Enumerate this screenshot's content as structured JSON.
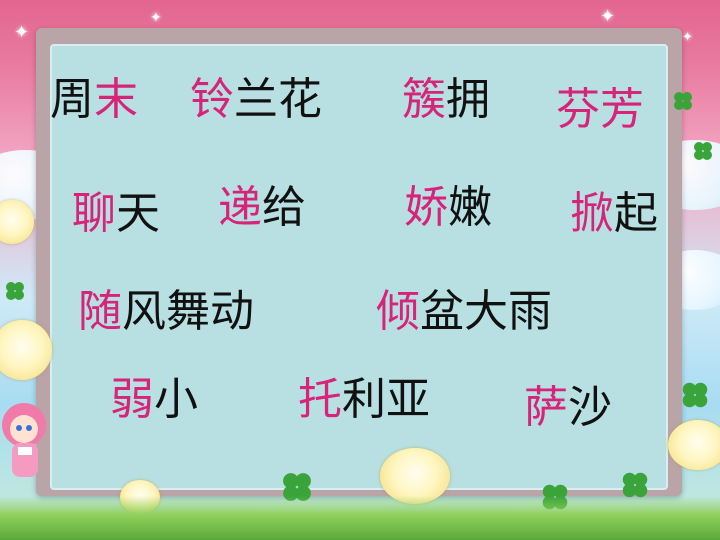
{
  "rows": [
    [
      {
        "parts": [
          {
            "text": "周",
            "color": "black"
          },
          {
            "text": "末",
            "color": "pink"
          }
        ]
      },
      {
        "parts": [
          {
            "text": "铃",
            "color": "pink"
          },
          {
            "text": "兰花",
            "color": "black"
          }
        ]
      },
      {
        "parts": [
          {
            "text": "簇",
            "color": "pink"
          },
          {
            "text": "拥",
            "color": "black"
          }
        ]
      },
      {
        "parts": [
          {
            "text": "芬芳",
            "color": "pink"
          }
        ]
      }
    ],
    [
      {
        "parts": [
          {
            "text": "聊",
            "color": "pink"
          },
          {
            "text": "天",
            "color": "black"
          }
        ]
      },
      {
        "parts": [
          {
            "text": "递",
            "color": "pink"
          },
          {
            "text": "给",
            "color": "black"
          }
        ]
      },
      {
        "parts": [
          {
            "text": "娇",
            "color": "pink"
          },
          {
            "text": "嫩",
            "color": "black"
          }
        ]
      },
      {
        "parts": [
          {
            "text": "掀",
            "color": "pink"
          },
          {
            "text": "起",
            "color": "black"
          }
        ]
      }
    ],
    [
      {
        "parts": [
          {
            "text": "随",
            "color": "pink"
          },
          {
            "text": "风舞动",
            "color": "black"
          }
        ]
      },
      {
        "parts": [
          {
            "text": "倾",
            "color": "pink"
          },
          {
            "text": "盆大雨",
            "color": "black"
          }
        ]
      }
    ],
    [
      {
        "parts": [
          {
            "text": "弱",
            "color": "pink"
          },
          {
            "text": "小",
            "color": "black"
          }
        ]
      },
      {
        "parts": [
          {
            "text": "托",
            "color": "pink"
          },
          {
            "text": "利亚",
            "color": "black"
          }
        ]
      },
      {
        "parts": [
          {
            "text": "萨",
            "color": "pink"
          },
          {
            "text": "沙",
            "color": "black"
          }
        ]
      }
    ]
  ],
  "colors": {
    "pink": "#d6247a",
    "black": "#111111",
    "board": "#b8e0e2",
    "frame": "#b9a4a8"
  }
}
